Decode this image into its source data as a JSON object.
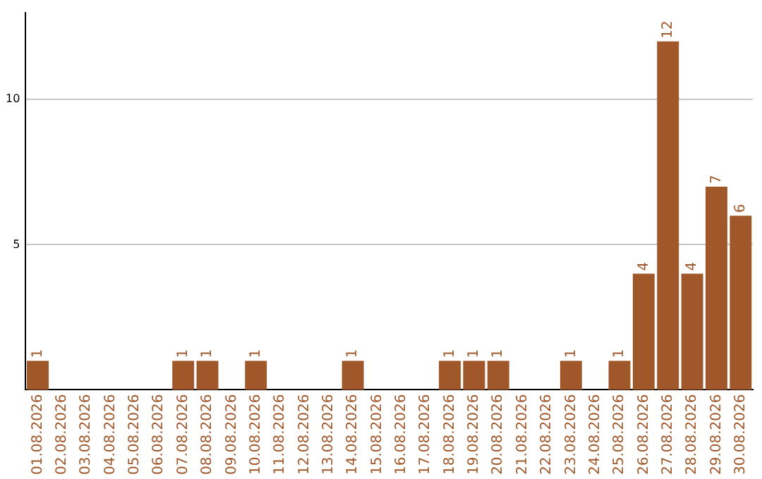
{
  "chart_data": {
    "type": "bar",
    "categories": [
      "01.08.2026",
      "02.08.2026",
      "03.08.2026",
      "04.08.2026",
      "05.08.2026",
      "06.08.2026",
      "07.08.2026",
      "08.08.2026",
      "09.08.2026",
      "10.08.2026",
      "11.08.2026",
      "12.08.2026",
      "13.08.2026",
      "14.08.2026",
      "15.08.2026",
      "16.08.2026",
      "17.08.2026",
      "18.08.2026",
      "19.08.2026",
      "20.08.2026",
      "21.08.2026",
      "22.08.2026",
      "23.08.2026",
      "24.08.2026",
      "25.08.2026",
      "26.08.2026",
      "27.08.2026",
      "28.08.2026",
      "29.08.2026",
      "30.08.2026"
    ],
    "values": [
      1,
      0,
      0,
      0,
      0,
      0,
      1,
      1,
      0,
      1,
      0,
      0,
      0,
      1,
      0,
      0,
      0,
      1,
      1,
      1,
      0,
      0,
      1,
      0,
      1,
      4,
      12,
      4,
      7,
      6
    ],
    "value_labels": [
      "1",
      null,
      null,
      null,
      null,
      null,
      "1",
      "1",
      null,
      "1",
      null,
      null,
      null,
      "1",
      null,
      null,
      null,
      "1",
      "1",
      "1",
      null,
      null,
      "1",
      null,
      "1",
      "4",
      "12",
      "4",
      "7",
      "6"
    ],
    "color": "#a0582a",
    "ylim": [
      0,
      13
    ],
    "yticks": [
      5,
      10
    ],
    "grid": "y",
    "legend": false
  }
}
